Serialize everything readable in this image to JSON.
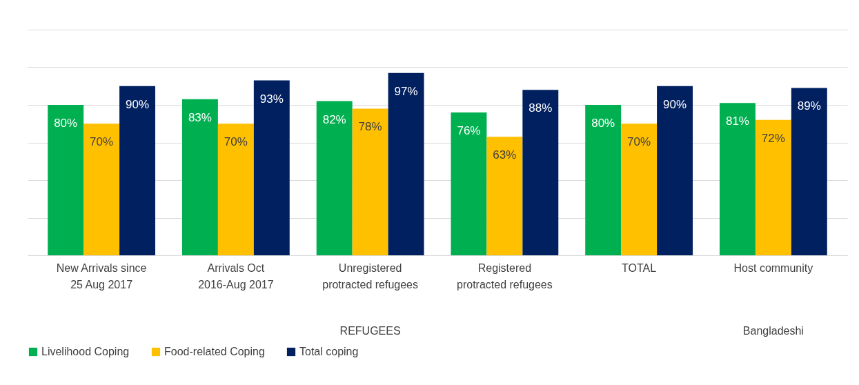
{
  "chart_data": {
    "type": "bar",
    "categories": [
      "New Arrivals since 25 Aug 2017",
      "Arrivals Oct 2016-Aug 2017",
      "Unregistered protracted refugees",
      "Registered protracted refugees",
      "TOTAL",
      "Host community"
    ],
    "series": [
      {
        "name": "Livelihood Coping",
        "color": "#00b050",
        "values": [
          80,
          83,
          82,
          76,
          80,
          81
        ],
        "value_labels": [
          "80%",
          "83%",
          "82%",
          "76%",
          "80%",
          "81%"
        ]
      },
      {
        "name": "Food-related Coping",
        "color": "#ffc000",
        "values": [
          70,
          70,
          78,
          63,
          70,
          72
        ],
        "value_labels": [
          "70%",
          "70%",
          "78%",
          "63%",
          "70%",
          "72%"
        ]
      },
      {
        "name": "Total coping",
        "color": "#002060",
        "values": [
          90,
          93,
          97,
          88,
          90,
          89
        ],
        "value_labels": [
          "90%",
          "93%",
          "97%",
          "88%",
          "90%",
          "89%"
        ]
      }
    ],
    "ylim": [
      0,
      120
    ],
    "yticks": [
      {
        "value": 0,
        "label": null
      },
      {
        "value": 20,
        "label": null
      },
      {
        "value": 40,
        "label": null
      },
      {
        "value": 60,
        "label": null
      },
      {
        "value": 80,
        "label": null
      },
      {
        "value": 100,
        "label": null
      },
      {
        "value": 120,
        "label": null
      }
    ],
    "tick_labels": "x",
    "grid": "y",
    "legend": "bottom",
    "annotations": [
      "REFUGEES",
      "Bangladeshi"
    ]
  }
}
